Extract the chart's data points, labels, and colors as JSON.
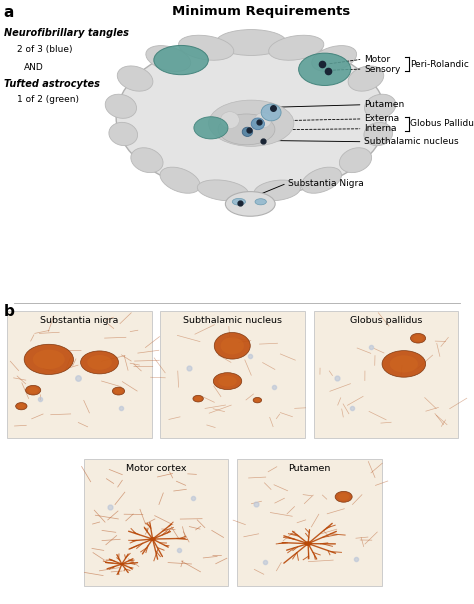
{
  "title": "Minimum Requirements",
  "panel_a_label": "a",
  "panel_b_label": "b",
  "bg_color": "#ffffff",
  "brain_fill": "#e4e4e4",
  "brain_edge": "#b0b0b0",
  "gyrus_fill": "#d0d0d0",
  "gyrus_edge": "#b8b8b8",
  "teal_color": "#5a9e96",
  "light_blue": "#8ab4cc",
  "dark_dot": "#1a2535",
  "brainstem_fill": "#dcdcdc",
  "label_fs": 6.5,
  "title_fs": 9.5,
  "panel_bg": "#f5ede0",
  "panel_edge": "#cccccc",
  "tangle_color": "#c05010",
  "tangle_inner": "#d06820",
  "fiber_color": "#b86030",
  "astrocyte_color": "#b84808"
}
